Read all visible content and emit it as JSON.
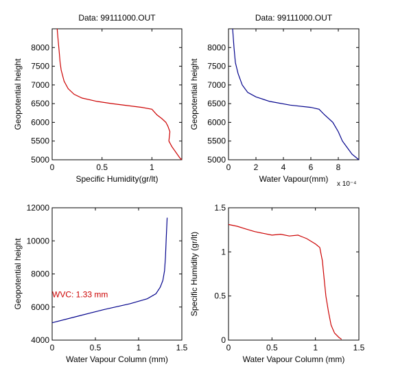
{
  "chart_data": [
    {
      "type": "line",
      "title": "Data: 99111000.OUT",
      "xlabel": "Specific Humidity(gr/lt)",
      "ylabel": "Geopotential height",
      "xlim": [
        0,
        1.3
      ],
      "ylim": [
        5000,
        8500
      ],
      "xticks": [
        0,
        0.5,
        1
      ],
      "xtick_labels": [
        "0",
        "0.5",
        "1"
      ],
      "yticks": [
        5000,
        5500,
        6000,
        6500,
        7000,
        7500,
        8000
      ],
      "ytick_labels": [
        "5000",
        "5500",
        "6000",
        "6500",
        "7000",
        "7500",
        "8000"
      ],
      "grid": false,
      "series": [
        {
          "color": "#cc0000",
          "x": [
            0.05,
            0.06,
            0.07,
            0.08,
            0.09,
            0.12,
            0.16,
            0.22,
            0.3,
            0.45,
            0.6,
            0.75,
            0.9,
            1.0,
            1.05,
            1.1,
            1.14,
            1.16,
            1.18,
            1.17,
            1.2,
            1.24,
            1.28,
            1.3
          ],
          "y": [
            8500,
            8200,
            7900,
            7600,
            7400,
            7100,
            6900,
            6750,
            6650,
            6560,
            6500,
            6450,
            6400,
            6350,
            6200,
            6100,
            6000,
            5900,
            5750,
            5500,
            5350,
            5200,
            5050,
            5000
          ]
        }
      ]
    },
    {
      "type": "line",
      "title": "Data: 99111000.OUT",
      "xlabel": "Water Vapour(mm)",
      "ylabel": "Geopotential height",
      "x_multiplier": "x 10⁻⁴",
      "xlim": [
        0,
        9.5
      ],
      "ylim": [
        5000,
        8500
      ],
      "xticks": [
        0,
        2,
        4,
        6,
        8
      ],
      "xtick_labels": [
        "0",
        "2",
        "4",
        "6",
        "8"
      ],
      "yticks": [
        5000,
        5500,
        6000,
        6500,
        7000,
        7500,
        8000
      ],
      "ytick_labels": [
        "5000",
        "5500",
        "6000",
        "6500",
        "7000",
        "7500",
        "8000"
      ],
      "grid": false,
      "series": [
        {
          "color": "#00008b",
          "x": [
            0.3,
            0.4,
            0.5,
            0.7,
            1.0,
            1.4,
            2.0,
            3.0,
            4.5,
            6.0,
            6.6,
            7.0,
            7.6,
            8.0,
            8.3,
            8.7,
            9.0,
            9.5
          ],
          "y": [
            8500,
            8000,
            7600,
            7300,
            7000,
            6800,
            6680,
            6560,
            6460,
            6400,
            6350,
            6200,
            6000,
            5750,
            5500,
            5300,
            5150,
            5000
          ]
        }
      ]
    },
    {
      "type": "line",
      "title": "",
      "xlabel": "Water Vapour Column (mm)",
      "ylabel": "Geopotential height",
      "annotation": "WVC: 1.33 mm",
      "xlim": [
        0,
        1.5
      ],
      "ylim": [
        4000,
        12000
      ],
      "xticks": [
        0,
        0.5,
        1,
        1.5
      ],
      "xtick_labels": [
        "0",
        "0.5",
        "1",
        "1.5"
      ],
      "yticks": [
        4000,
        6000,
        8000,
        10000,
        12000
      ],
      "ytick_labels": [
        "4000",
        "6000",
        "8000",
        "10000",
        "12000"
      ],
      "grid": false,
      "series": [
        {
          "color": "#00008b",
          "x": [
            0,
            0.3,
            0.6,
            0.9,
            1.1,
            1.2,
            1.25,
            1.28,
            1.3,
            1.31,
            1.32,
            1.33
          ],
          "y": [
            5050,
            5450,
            5850,
            6200,
            6500,
            6800,
            7200,
            7600,
            8200,
            9000,
            10200,
            11400
          ]
        }
      ]
    },
    {
      "type": "line",
      "title": "",
      "xlabel": "Water Vapour Column (mm)",
      "ylabel": "Specific Humidity (gr/lt)",
      "xlim": [
        0,
        1.5
      ],
      "ylim": [
        0,
        1.5
      ],
      "xticks": [
        0,
        0.5,
        1,
        1.5
      ],
      "xtick_labels": [
        "0",
        "0.5",
        "1",
        "1.5"
      ],
      "yticks": [
        0,
        0.5,
        1,
        1.5
      ],
      "ytick_labels": [
        "0",
        "0.5",
        "1",
        "1.5"
      ],
      "grid": false,
      "series": [
        {
          "color": "#cc0000",
          "x": [
            0,
            0.1,
            0.2,
            0.3,
            0.4,
            0.5,
            0.6,
            0.7,
            0.8,
            0.85,
            0.9,
            0.95,
            1.0,
            1.05,
            1.08,
            1.1,
            1.12,
            1.15,
            1.18,
            1.22,
            1.27,
            1.3
          ],
          "y": [
            1.31,
            1.29,
            1.26,
            1.23,
            1.21,
            1.19,
            1.2,
            1.18,
            1.19,
            1.17,
            1.15,
            1.12,
            1.09,
            1.05,
            0.9,
            0.7,
            0.5,
            0.32,
            0.17,
            0.08,
            0.03,
            0.01
          ]
        }
      ]
    }
  ]
}
